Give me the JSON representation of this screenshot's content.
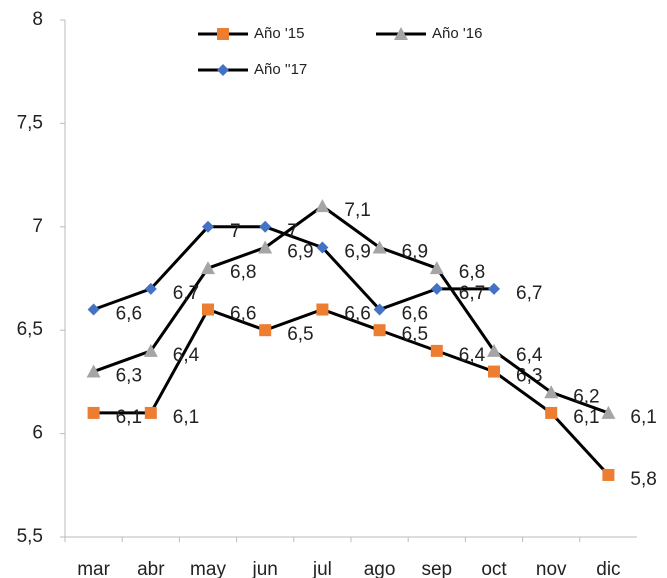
{
  "chart_data": {
    "type": "line",
    "categories": [
      "mar",
      "abr",
      "may",
      "jun",
      "jul",
      "ago",
      "sep",
      "oct",
      "nov",
      "dic"
    ],
    "line_color": "#000000",
    "series": [
      {
        "name": "Año '15",
        "color": "#ed7d31",
        "marker": "square",
        "values": [
          6.1,
          6.1,
          6.6,
          6.5,
          6.6,
          6.5,
          6.4,
          6.3,
          6.1,
          5.8
        ],
        "value_labels": [
          "6,1",
          "6,1",
          "6,6",
          "6,5",
          "6,6",
          "6,5",
          "6,4",
          "6,3",
          "6,1",
          "5,8"
        ]
      },
      {
        "name": "Año '16",
        "color": "#a5a5a5",
        "marker": "triangle",
        "values": [
          6.3,
          6.4,
          6.8,
          6.9,
          7.1,
          6.9,
          6.8,
          6.4,
          6.2,
          6.1
        ],
        "value_labels": [
          "6,3",
          "6,4",
          "6,8",
          "6,9",
          "7,1",
          "6,9",
          "6,8",
          "6,4",
          "6,2",
          "6,1"
        ]
      },
      {
        "name": "Año ''17",
        "color": "#4472c4",
        "marker": "diamond",
        "values": [
          6.6,
          6.7,
          7,
          7,
          6.9,
          6.6,
          6.7,
          6.7,
          null,
          null
        ],
        "value_labels": [
          "6,6",
          "6,7",
          "7",
          "7",
          "6,9",
          "6,6",
          "6,7",
          "6,7",
          null,
          null
        ]
      }
    ],
    "ylim": [
      5.5,
      8
    ],
    "yticks": [
      {
        "value": 5.5,
        "label": "5,5"
      },
      6,
      {
        "value": 6.5,
        "label": "6,5"
      },
      7,
      {
        "value": 7.5,
        "label": "7,5"
      },
      8
    ]
  }
}
